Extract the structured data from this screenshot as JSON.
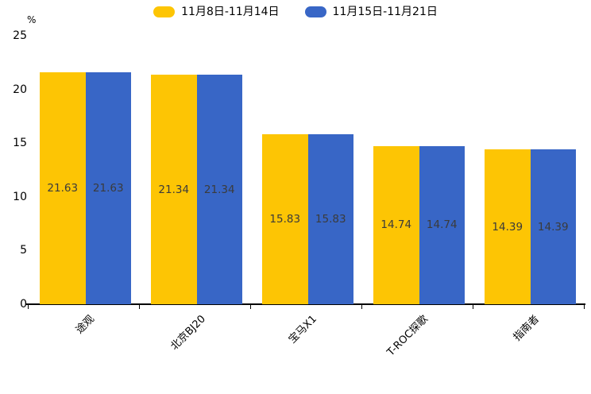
{
  "legend": {
    "items": [
      {
        "label": "11月8日-11月14日",
        "color": "#FDC504"
      },
      {
        "label": "11月15日-11月21日",
        "color": "#3866C6"
      }
    ]
  },
  "y_axis": {
    "unit_label": "%"
  },
  "chart_data": {
    "type": "bar",
    "title": "",
    "categories": [
      "途观",
      "北京BJ20",
      "宝马X1",
      "T-ROC探歌",
      "指南者"
    ],
    "series": [
      {
        "name": "11月8日-11月14日",
        "color": "#FDC504",
        "values": [
          21.63,
          21.34,
          15.83,
          14.74,
          14.39
        ]
      },
      {
        "name": "11月15日-11月21日",
        "color": "#3866C6",
        "values": [
          21.63,
          21.34,
          15.83,
          14.74,
          14.39
        ]
      }
    ],
    "xlabel": "",
    "ylabel": "%",
    "ylim": [
      0,
      25
    ],
    "yticks": [
      0,
      5,
      10,
      15,
      20,
      25
    ],
    "grid": false,
    "legend_position": "top-center",
    "value_labels": "centered-inside-bars",
    "value_label_color": "#3b3b3b",
    "xtick_rotation_deg": 45
  }
}
